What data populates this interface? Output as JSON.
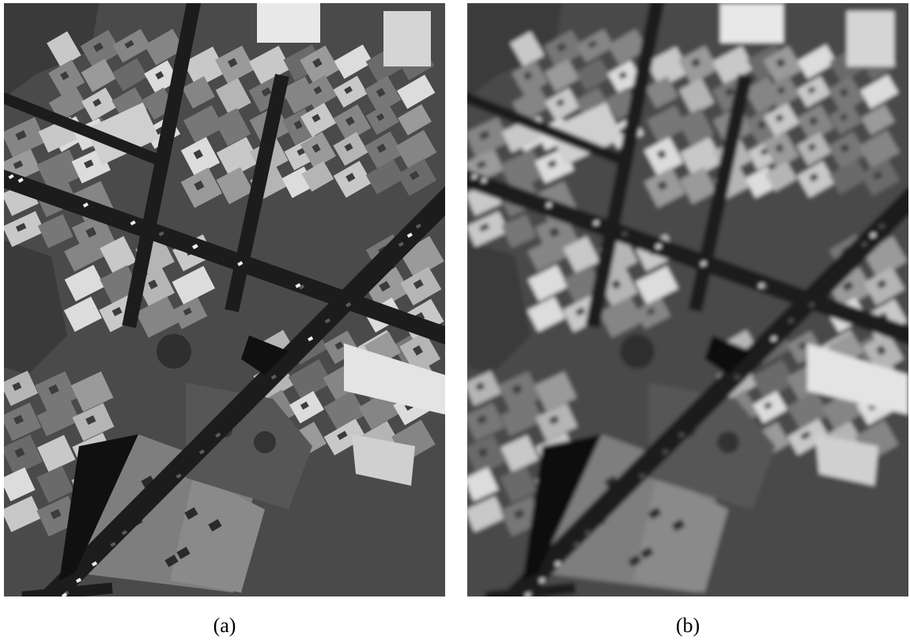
{
  "figure": {
    "panels": [
      {
        "id": "a",
        "caption": "(a)",
        "rendering": "sharp"
      },
      {
        "id": "b",
        "caption": "(b)",
        "rendering": "blurred"
      }
    ]
  },
  "colors": {
    "ground": "#4a4a4a",
    "road": "#1c1c1c",
    "roof_light": "#dcdcdc",
    "roof_mid": "#9a9a9a",
    "roof_dark": "#6a6a6a",
    "vegetation": "#3a3a3a",
    "shadow": "#101010"
  }
}
